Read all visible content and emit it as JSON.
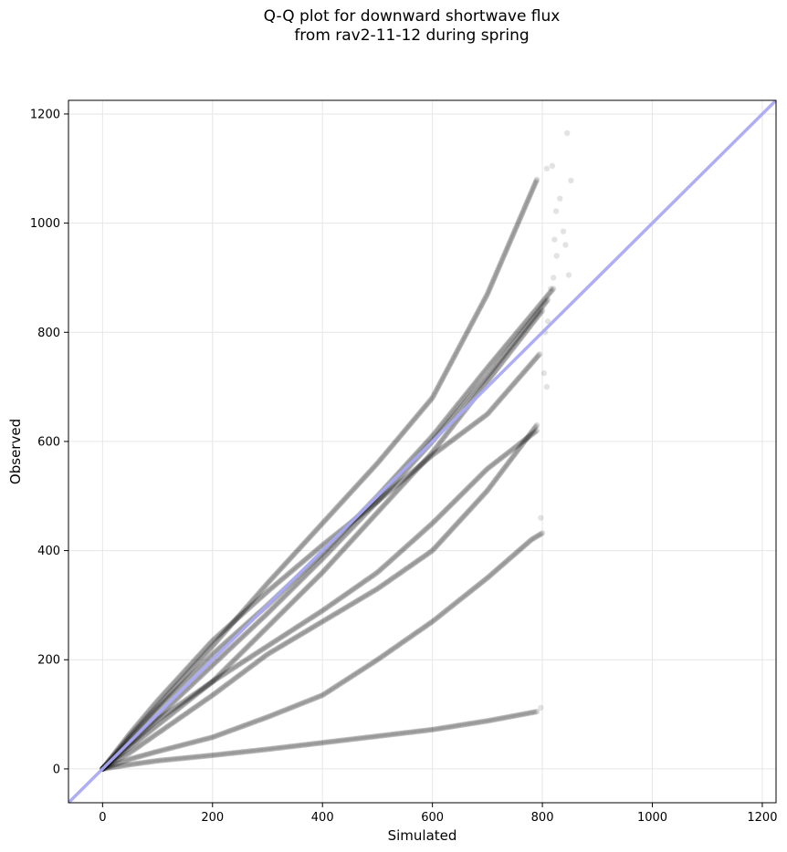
{
  "chart_data": {
    "type": "scatter",
    "title": "Q-Q plot for downward shortwave flux\nfrom rav2-11-12 during spring",
    "xlabel": "Simulated",
    "ylabel": "Observed",
    "xlim": [
      -62,
      1225
    ],
    "ylim": [
      -62,
      1225
    ],
    "xticks": [
      0,
      200,
      400,
      600,
      800,
      1000,
      1200
    ],
    "yticks": [
      0,
      200,
      400,
      600,
      800,
      1000,
      1200
    ],
    "grid": true,
    "reference_line": {
      "slope": 1,
      "intercept": 0,
      "color": "#aaaaf5"
    },
    "point_color": "#000000",
    "point_alpha": 0.12,
    "series": [
      {
        "x": [
          0,
          50,
          100,
          200,
          300,
          400,
          500,
          600,
          700,
          780,
          800
        ],
        "y": [
          0,
          18,
          32,
          58,
          95,
          135,
          200,
          270,
          350,
          420,
          432
        ]
      },
      {
        "x": [
          0,
          50,
          100,
          200,
          300,
          400,
          500,
          600,
          700,
          790
        ],
        "y": [
          0,
          8,
          15,
          25,
          36,
          48,
          60,
          72,
          88,
          105
        ]
      },
      {
        "x": [
          0,
          50,
          100,
          200,
          300,
          400,
          500,
          600,
          700,
          795
        ],
        "y": [
          0,
          65,
          125,
          235,
          325,
          410,
          490,
          575,
          650,
          760
        ]
      },
      {
        "x": [
          0,
          50,
          100,
          200,
          300,
          400,
          500,
          600,
          700,
          790
        ],
        "y": [
          0,
          60,
          115,
          225,
          340,
          450,
          560,
          680,
          870,
          1080
        ]
      },
      {
        "x": [
          0,
          50,
          100,
          200,
          300,
          400,
          500,
          600,
          700,
          790
        ],
        "y": [
          0,
          30,
          65,
          135,
          210,
          270,
          330,
          400,
          510,
          630
        ]
      },
      {
        "x": [
          0,
          50,
          100,
          200,
          300,
          400,
          500,
          600,
          700,
          790
        ],
        "y": [
          0,
          45,
          90,
          160,
          225,
          290,
          360,
          450,
          550,
          620
        ]
      },
      {
        "x": [
          0,
          50,
          100,
          200,
          300,
          400,
          500,
          600,
          700,
          800
        ],
        "y": [
          0,
          40,
          80,
          160,
          260,
          360,
          470,
          580,
          710,
          840
        ]
      },
      {
        "x": [
          0,
          50,
          100,
          200,
          300,
          400,
          500,
          600,
          700,
          810
        ],
        "y": [
          0,
          48,
          95,
          190,
          285,
          385,
          490,
          600,
          720,
          860
        ]
      },
      {
        "x": [
          0,
          50,
          100,
          200,
          300,
          400,
          500,
          600,
          700,
          820
        ],
        "y": [
          0,
          55,
          110,
          210,
          300,
          395,
          500,
          610,
          735,
          880
        ]
      }
    ],
    "outliers": [
      {
        "x": 845,
        "y": 1165
      },
      {
        "x": 818,
        "y": 1105
      },
      {
        "x": 808,
        "y": 1100
      },
      {
        "x": 852,
        "y": 1078
      },
      {
        "x": 832,
        "y": 1045
      },
      {
        "x": 825,
        "y": 1022
      },
      {
        "x": 838,
        "y": 985
      },
      {
        "x": 822,
        "y": 970
      },
      {
        "x": 842,
        "y": 960
      },
      {
        "x": 826,
        "y": 940
      },
      {
        "x": 848,
        "y": 905
      },
      {
        "x": 820,
        "y": 900
      },
      {
        "x": 815,
        "y": 880
      },
      {
        "x": 810,
        "y": 820
      },
      {
        "x": 805,
        "y": 800
      },
      {
        "x": 803,
        "y": 725
      },
      {
        "x": 808,
        "y": 700
      },
      {
        "x": 797,
        "y": 460
      },
      {
        "x": 797,
        "y": 112
      }
    ]
  }
}
